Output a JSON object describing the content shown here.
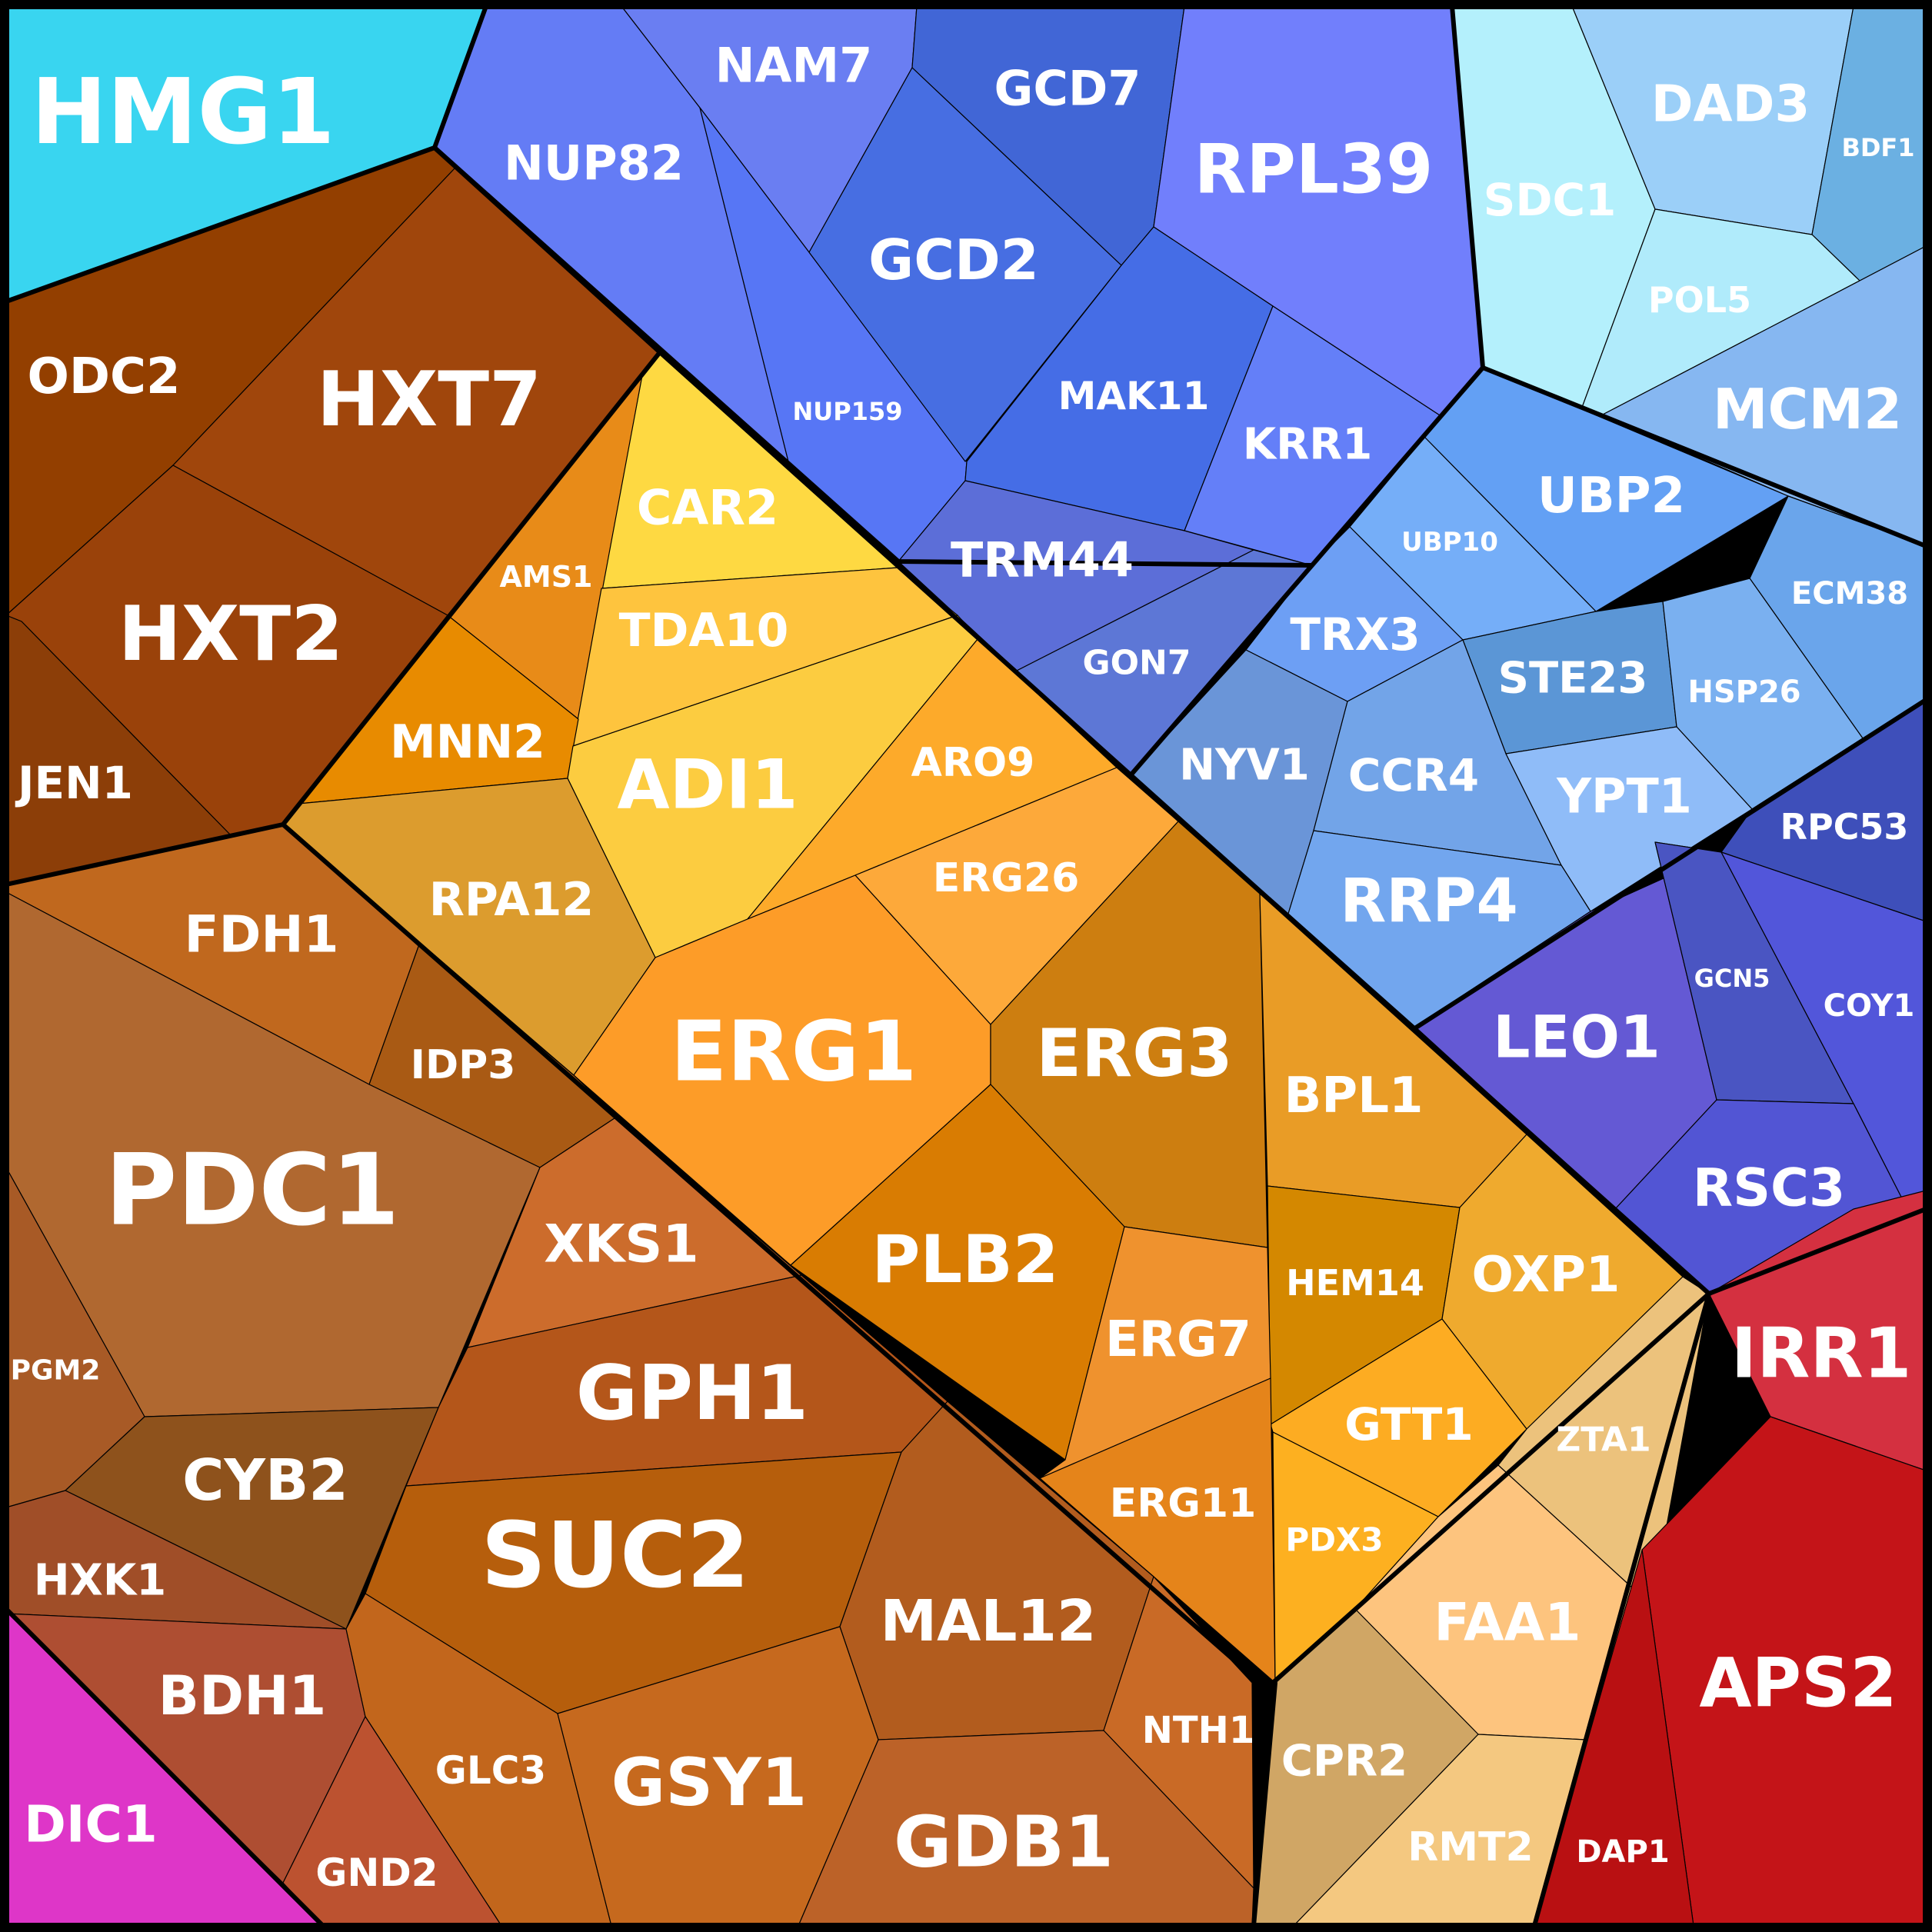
{
  "cells": [
    {
      "id": "HMG1",
      "label": "HMG1",
      "color": "#39d5f0"
    },
    {
      "id": "NUP82",
      "label": "NUP82",
      "color": "#647cf5"
    },
    {
      "id": "NAM7",
      "label": "NAM7",
      "color": "#6a7ef2"
    },
    {
      "id": "GCD7",
      "label": "GCD7",
      "color": "#4166d6"
    },
    {
      "id": "RPL39",
      "label": "RPL39",
      "color": "#717ffc"
    },
    {
      "id": "SDC1",
      "label": "SDC1",
      "color": "#b4f0fc"
    },
    {
      "id": "DAD3",
      "label": "DAD3",
      "color": "#9bcff8"
    },
    {
      "id": "BDF1",
      "label": "BDF1",
      "color": "#6bb0e2"
    },
    {
      "id": "POL5",
      "label": "POL5",
      "color": "#b0ebfb"
    },
    {
      "id": "MCM2",
      "label": "MCM2",
      "color": "#86b7f1"
    },
    {
      "id": "NUP159",
      "label": "NUP159",
      "color": "#5776f5"
    },
    {
      "id": "GCD2",
      "label": "GCD2",
      "color": "#476ee2"
    },
    {
      "id": "MAK11",
      "label": "MAK11",
      "color": "#456de6"
    },
    {
      "id": "KRR1",
      "label": "KRR1",
      "color": "#647ff8"
    },
    {
      "id": "TRM44",
      "label": "TRM44",
      "color": "#5c6ed8"
    },
    {
      "id": "GON7",
      "label": "GON7",
      "color": "#5d77d6"
    },
    {
      "id": "UBP2",
      "label": "UBP2",
      "color": "#63a0f4"
    },
    {
      "id": "UBP10",
      "label": "UBP10",
      "color": "#75aef8"
    },
    {
      "id": "TRX3",
      "label": "TRX3",
      "color": "#6d9ff4"
    },
    {
      "id": "ECM38",
      "label": "ECM38",
      "color": "#6aa5eb"
    },
    {
      "id": "STE23",
      "label": "STE23",
      "color": "#5b96d6"
    },
    {
      "id": "HSP26",
      "label": "HSP26",
      "color": "#7ab0f0"
    },
    {
      "id": "NYV1",
      "label": "NYV1",
      "color": "#6a95d8"
    },
    {
      "id": "CCR4",
      "label": "CCR4",
      "color": "#72a4e8"
    },
    {
      "id": "YPT1",
      "label": "YPT1",
      "color": "#8fbcf8"
    },
    {
      "id": "RRP4",
      "label": "RRP4",
      "color": "#72a6ee"
    },
    {
      "id": "RPC53",
      "label": "RPC53",
      "color": "#3e4fba"
    },
    {
      "id": "LEO1",
      "label": "LEO1",
      "color": "#6459d4"
    },
    {
      "id": "GCN5",
      "label": "GCN5",
      "color": "#4a55c2"
    },
    {
      "id": "COY1",
      "label": "COY1",
      "color": "#5256da"
    },
    {
      "id": "RSC3",
      "label": "RSC3",
      "color": "#5255d4"
    },
    {
      "id": "ODC2",
      "label": "ODC2",
      "color": "#933f00"
    },
    {
      "id": "HXT7",
      "label": "HXT7",
      "color": "#a0460c"
    },
    {
      "id": "HXT2",
      "label": "HXT2",
      "color": "#9a420a"
    },
    {
      "id": "JEN1",
      "label": "JEN1",
      "color": "#8c3e08"
    },
    {
      "id": "CAR2",
      "label": "CAR2",
      "color": "#fed942"
    },
    {
      "id": "AMS1",
      "label": "AMS1",
      "color": "#e88b18"
    },
    {
      "id": "TDA10",
      "label": "TDA10",
      "color": "#fec43e"
    },
    {
      "id": "MNN2",
      "label": "MNN2",
      "color": "#e88b00"
    },
    {
      "id": "ADI1",
      "label": "ADI1",
      "color": "#fccc40"
    },
    {
      "id": "ARO9",
      "label": "ARO9",
      "color": "#fdaa2a"
    },
    {
      "id": "RPA12",
      "label": "RPA12",
      "color": "#dc9c2e"
    },
    {
      "id": "ERG26",
      "label": "ERG26",
      "color": "#fda93a"
    },
    {
      "id": "ERG1",
      "label": "ERG1",
      "color": "#fd9c28"
    },
    {
      "id": "ERG3",
      "label": "ERG3",
      "color": "#cd7e10"
    },
    {
      "id": "BPL1",
      "label": "BPL1",
      "color": "#e99c26"
    },
    {
      "id": "PLB2",
      "label": "PLB2",
      "color": "#d97c02"
    },
    {
      "id": "HEM14",
      "label": "HEM14",
      "color": "#d48800"
    },
    {
      "id": "OXP1",
      "label": "OXP1",
      "color": "#efaa2e"
    },
    {
      "id": "ERG7",
      "label": "ERG7",
      "color": "#ef922e"
    },
    {
      "id": "GTT1",
      "label": "GTT1",
      "color": "#fdac22"
    },
    {
      "id": "ERG11",
      "label": "ERG11",
      "color": "#e5841a"
    },
    {
      "id": "PDX3",
      "label": "PDX3",
      "color": "#fdb020"
    },
    {
      "id": "ZTA1",
      "label": "ZTA1",
      "color": "#ecc27c"
    },
    {
      "id": "FAA1",
      "label": "FAA1",
      "color": "#fdc47e"
    },
    {
      "id": "CPR2",
      "label": "CPR2",
      "color": "#d0a665"
    },
    {
      "id": "RMT2",
      "label": "RMT2",
      "color": "#f4c880"
    },
    {
      "id": "FDH1",
      "label": "FDH1",
      "color": "#c0681e"
    },
    {
      "id": "IDP3",
      "label": "IDP3",
      "color": "#a95a14"
    },
    {
      "id": "PDC1",
      "label": "PDC1",
      "color": "#b06830"
    },
    {
      "id": "XKS1",
      "label": "XKS1",
      "color": "#cc6c2c"
    },
    {
      "id": "PGM2",
      "label": "PGM2",
      "color": "#a85a26"
    },
    {
      "id": "GPH1",
      "label": "GPH1",
      "color": "#b4561a"
    },
    {
      "id": "CYB2",
      "label": "CYB2",
      "color": "#8e521c"
    },
    {
      "id": "SUC2",
      "label": "SUC2",
      "color": "#b65e0c"
    },
    {
      "id": "HXK1",
      "label": "HXK1",
      "color": "#a04e28"
    },
    {
      "id": "MAL12",
      "label": "MAL12",
      "color": "#b25c1e"
    },
    {
      "id": "BDH1",
      "label": "BDH1",
      "color": "#ae4e32"
    },
    {
      "id": "GLC3",
      "label": "GLC3",
      "color": "#c2661c"
    },
    {
      "id": "GSY1",
      "label": "GSY1",
      "color": "#c6691e"
    },
    {
      "id": "NTH1",
      "label": "NTH1",
      "color": "#c96a26"
    },
    {
      "id": "GND2",
      "label": "GND2",
      "color": "#bc5230"
    },
    {
      "id": "GDB1",
      "label": "GDB1",
      "color": "#bc6228"
    },
    {
      "id": "DIC1",
      "label": "DIC1",
      "color": "#de36c8"
    },
    {
      "id": "IRR1",
      "label": "IRR1",
      "color": "#d43040"
    },
    {
      "id": "APS2",
      "label": "APS2",
      "color": "#c41418"
    },
    {
      "id": "DAP1",
      "label": "DAP1",
      "color": "#b91012"
    }
  ]
}
